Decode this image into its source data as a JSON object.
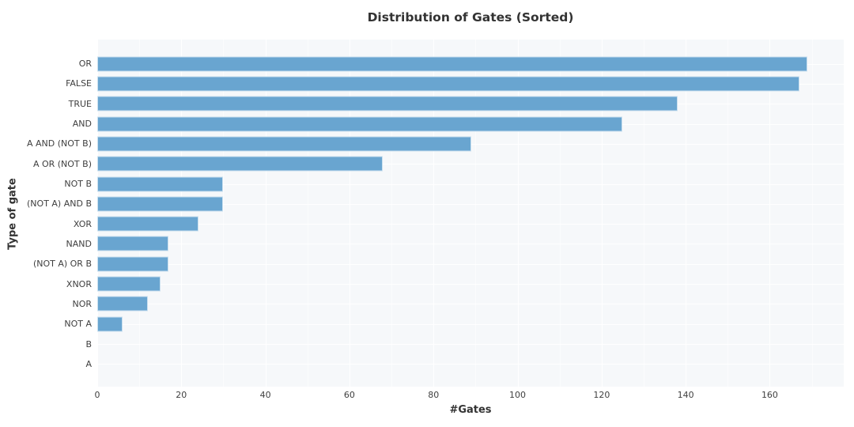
{
  "chart_data": {
    "type": "bar",
    "orientation": "horizontal",
    "title": "Distribution of Gates (Sorted)",
    "xlabel": "#Gates",
    "ylabel": "Type of gate",
    "categories": [
      "OR",
      "FALSE",
      "TRUE",
      "AND",
      "A AND (NOT B)",
      "A OR (NOT B)",
      "NOT B",
      "(NOT A) AND B",
      "XOR",
      "NAND",
      "(NOT A) OR B",
      "XNOR",
      "NOR",
      "NOT A",
      "B",
      "A"
    ],
    "values": [
      169,
      167,
      138,
      125,
      89,
      68,
      30,
      30,
      24,
      17,
      17,
      15,
      12,
      6,
      0,
      0
    ],
    "xlim": [
      0,
      177.6
    ],
    "xticks": [
      0,
      20,
      40,
      60,
      80,
      100,
      120,
      140,
      160
    ],
    "xticks_minor": [
      10,
      30,
      50,
      70,
      90,
      110,
      130,
      150,
      170
    ],
    "grid": "major and minor white gridlines on light panel, horizontal line per category",
    "legend": "none",
    "colors": {
      "bar": "#69a5d0",
      "bar_edge": "rgba(255,255,255,0.65)",
      "plot_bg": "#f6f8fa",
      "grid": "#ffffff",
      "title_text": "#333333",
      "tick_text": "#3f3f3f"
    }
  }
}
